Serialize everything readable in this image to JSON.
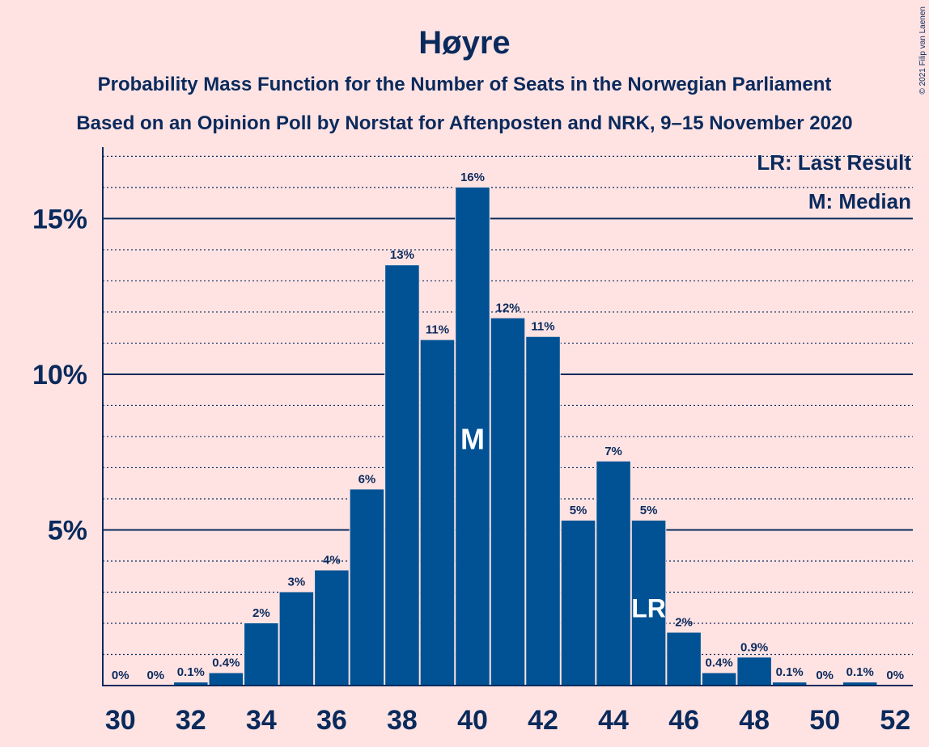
{
  "chart_data": {
    "type": "bar",
    "title": "Høyre",
    "subtitle1": "Probability Mass Function for the Number of Seats in the Norwegian Parliament",
    "subtitle2": "Based on an Opinion Poll by Norstat for Aftenposten and NRK, 9–15 November 2020",
    "copyright": "© 2021 Filip van Laenen",
    "legend": {
      "last_result": "LR: Last Result",
      "median": "M: Median",
      "placement": "top-right"
    },
    "x": [
      30,
      31,
      32,
      33,
      34,
      35,
      36,
      37,
      38,
      39,
      40,
      41,
      42,
      43,
      44,
      45,
      46,
      47,
      48,
      49,
      50,
      51,
      52
    ],
    "values": [
      0,
      0,
      0.1,
      0.4,
      2.0,
      3.0,
      3.7,
      6.3,
      13.5,
      11.1,
      16.0,
      11.8,
      11.2,
      5.3,
      7.2,
      5.3,
      1.7,
      0.4,
      0.9,
      0.1,
      0,
      0.1,
      0
    ],
    "labels": [
      "0%",
      "0%",
      "0.1%",
      "0.4%",
      "2%",
      "3%",
      "4%",
      "6%",
      "13%",
      "11%",
      "16%",
      "12%",
      "11%",
      "5%",
      "7%",
      "5%",
      "2%",
      "0.4%",
      "0.9%",
      "0.1%",
      "0%",
      "0.1%",
      "0%"
    ],
    "x_tick_labels": [
      "30",
      "32",
      "34",
      "36",
      "38",
      "40",
      "42",
      "44",
      "46",
      "48",
      "50",
      "52"
    ],
    "y_ticks": [
      5,
      10,
      15
    ],
    "y_tick_labels": [
      "5%",
      "10%",
      "15%"
    ],
    "ylim": [
      0,
      17.4
    ],
    "median_seat": 40,
    "median_marker": "M",
    "last_result_seat": 45,
    "last_result_marker": "LR",
    "colors": {
      "bar": "#005294",
      "background": "#ffe3e3",
      "text": "#0a2a5c"
    }
  }
}
